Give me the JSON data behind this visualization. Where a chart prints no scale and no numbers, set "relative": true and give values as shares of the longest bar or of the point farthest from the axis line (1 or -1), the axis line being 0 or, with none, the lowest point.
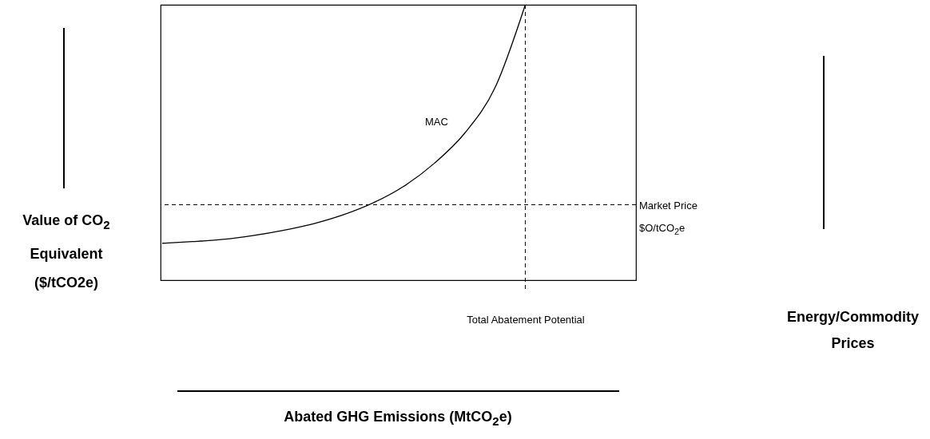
{
  "chart_data": {
    "type": "line",
    "relative": true,
    "ylabel": "Value of CO$_{2}$ Equivalent ($/tCO2e)",
    "annotations": [
      "Abated GHG Emissions (MtCO$_{2}$e)",
      "Energy/Commodity Prices"
    ],
    "categories": [
      null,
      null,
      null,
      null,
      null,
      null,
      null,
      null,
      null,
      null,
      null,
      null,
      null
    ],
    "series": [
      {
        "name": "MAC",
        "color": "#000000",
        "values": [
          0.134,
          0.14,
          0.148,
          0.162,
          0.181,
          0.205,
          0.238,
          0.282,
          0.342,
          0.425,
          0.534,
          0.699,
          1.0
        ]
      }
    ],
    "ref_lines": [
      {
        "axis": "y",
        "value": 0.274,
        "label": "Market Price $O/tCO$_{2}$e",
        "line_style": "dashed",
        "color": "#000000"
      },
      {
        "axis": "x",
        "label": "Total Abatement Potential",
        "line_style": "dashed",
        "color": "#000000"
      }
    ]
  }
}
